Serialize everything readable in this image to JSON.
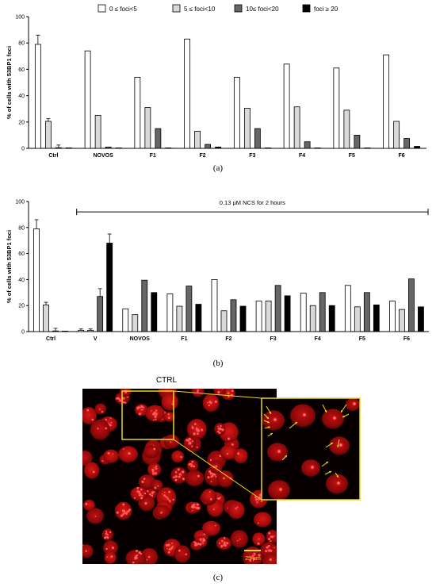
{
  "chart_data": [
    {
      "type": "bar",
      "panel_label": "(a)",
      "ylabel": "% of cells with 53BP1 foci",
      "ylim": [
        0,
        100
      ],
      "yticks": [
        0,
        20,
        40,
        60,
        80,
        100
      ],
      "categories": [
        "Ctrl",
        "NOVOS",
        "F1",
        "F2",
        "F3",
        "F4",
        "F5",
        "F6"
      ],
      "legend_position": "top",
      "series": [
        {
          "name": "0 ≤ foci<5",
          "color": "#ffffff",
          "values": [
            79,
            74,
            54,
            83,
            54,
            64,
            61,
            71
          ],
          "errors": [
            7,
            null,
            null,
            null,
            null,
            null,
            null,
            null
          ]
        },
        {
          "name": "5 ≤ foci<10",
          "color": "#d9d9d9",
          "values": [
            20.5,
            25,
            31,
            13,
            30.5,
            31.5,
            29,
            20.5
          ],
          "errors": [
            2,
            null,
            null,
            null,
            null,
            null,
            null,
            null
          ]
        },
        {
          "name": "10≤ foci<20",
          "color": "#666666",
          "values": [
            0.5,
            1,
            15,
            3,
            15,
            5,
            10,
            7.5
          ],
          "errors": [
            2,
            null,
            null,
            null,
            null,
            null,
            null,
            null
          ]
        },
        {
          "name": "foci ≥ 20",
          "color": "#000000",
          "values": [
            0.3,
            0,
            0,
            1,
            0,
            0,
            0,
            1.5
          ],
          "errors": [
            null,
            null,
            null,
            null,
            null,
            null,
            null,
            null
          ]
        }
      ]
    },
    {
      "type": "bar",
      "panel_label": "(b)",
      "ylabel": "% of cells with 53BP1 foci",
      "ylim": [
        0,
        100
      ],
      "yticks": [
        0,
        20,
        40,
        60,
        80,
        100
      ],
      "categories": [
        "Ctrl",
        "V",
        "NOVOS",
        "F1",
        "F2",
        "F3",
        "F4",
        "F5",
        "F6"
      ],
      "annotation": "0.13 µM NCS for 2 hours",
      "annotation_span": [
        "V",
        "F6"
      ],
      "series": [
        {
          "name": "0 ≤ foci<5",
          "color": "#ffffff",
          "values": [
            79,
            1,
            17.5,
            29,
            40,
            23.5,
            29.5,
            35.5,
            23.5
          ],
          "errors": [
            7,
            1,
            null,
            null,
            null,
            null,
            null,
            null,
            null
          ]
        },
        {
          "name": "5 ≤ foci<10",
          "color": "#d9d9d9",
          "values": [
            20.5,
            1,
            13,
            19.5,
            16,
            23.5,
            20,
            19,
            17
          ],
          "errors": [
            2,
            1,
            null,
            null,
            null,
            null,
            null,
            null,
            null
          ]
        },
        {
          "name": "10≤ foci<20",
          "color": "#666666",
          "values": [
            0.5,
            27,
            39.5,
            35,
            24.5,
            35.5,
            30,
            30,
            40.5
          ],
          "errors": [
            2,
            6,
            null,
            null,
            null,
            null,
            null,
            null,
            null
          ]
        },
        {
          "name": "foci ≥ 20",
          "color": "#000000",
          "values": [
            0.3,
            68,
            30,
            21,
            19.5,
            27.5,
            20,
            20.5,
            19
          ],
          "errors": [
            null,
            7,
            null,
            null,
            null,
            null,
            null,
            null,
            null
          ]
        }
      ]
    }
  ],
  "micrograph": {
    "label": "CTRL",
    "scale_bar": "25 µm",
    "panel_label": "(c)"
  }
}
